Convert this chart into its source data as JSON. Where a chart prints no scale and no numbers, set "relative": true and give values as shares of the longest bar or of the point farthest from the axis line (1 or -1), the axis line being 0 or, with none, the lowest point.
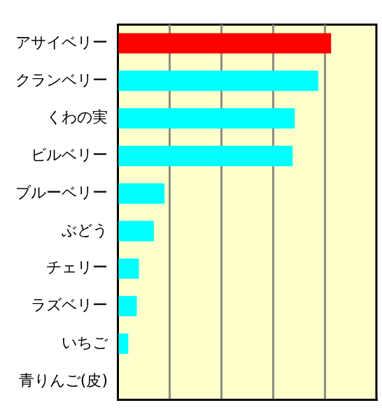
{
  "chart_data": {
    "type": "bar",
    "orientation": "horizontal",
    "relative": true,
    "grid": "x",
    "categories": [
      "アサイベリー",
      "クランベリー",
      "くわの実",
      "ビルベリー",
      "ブルーベリー",
      "ぶどう",
      "チェリー",
      "ラズベリー",
      "いちご",
      "青りんご(皮)"
    ],
    "values": [
      1,
      0.94,
      0.83,
      0.82,
      0.22,
      0.17,
      0.1,
      0.09,
      0.05,
      0
    ],
    "colors": [
      "#ff0000",
      "#00ffff",
      "#00ffff",
      "#00ffff",
      "#00ffff",
      "#00ffff",
      "#00ffff",
      "#00ffff",
      "#00ffff",
      "#00ffff"
    ]
  }
}
